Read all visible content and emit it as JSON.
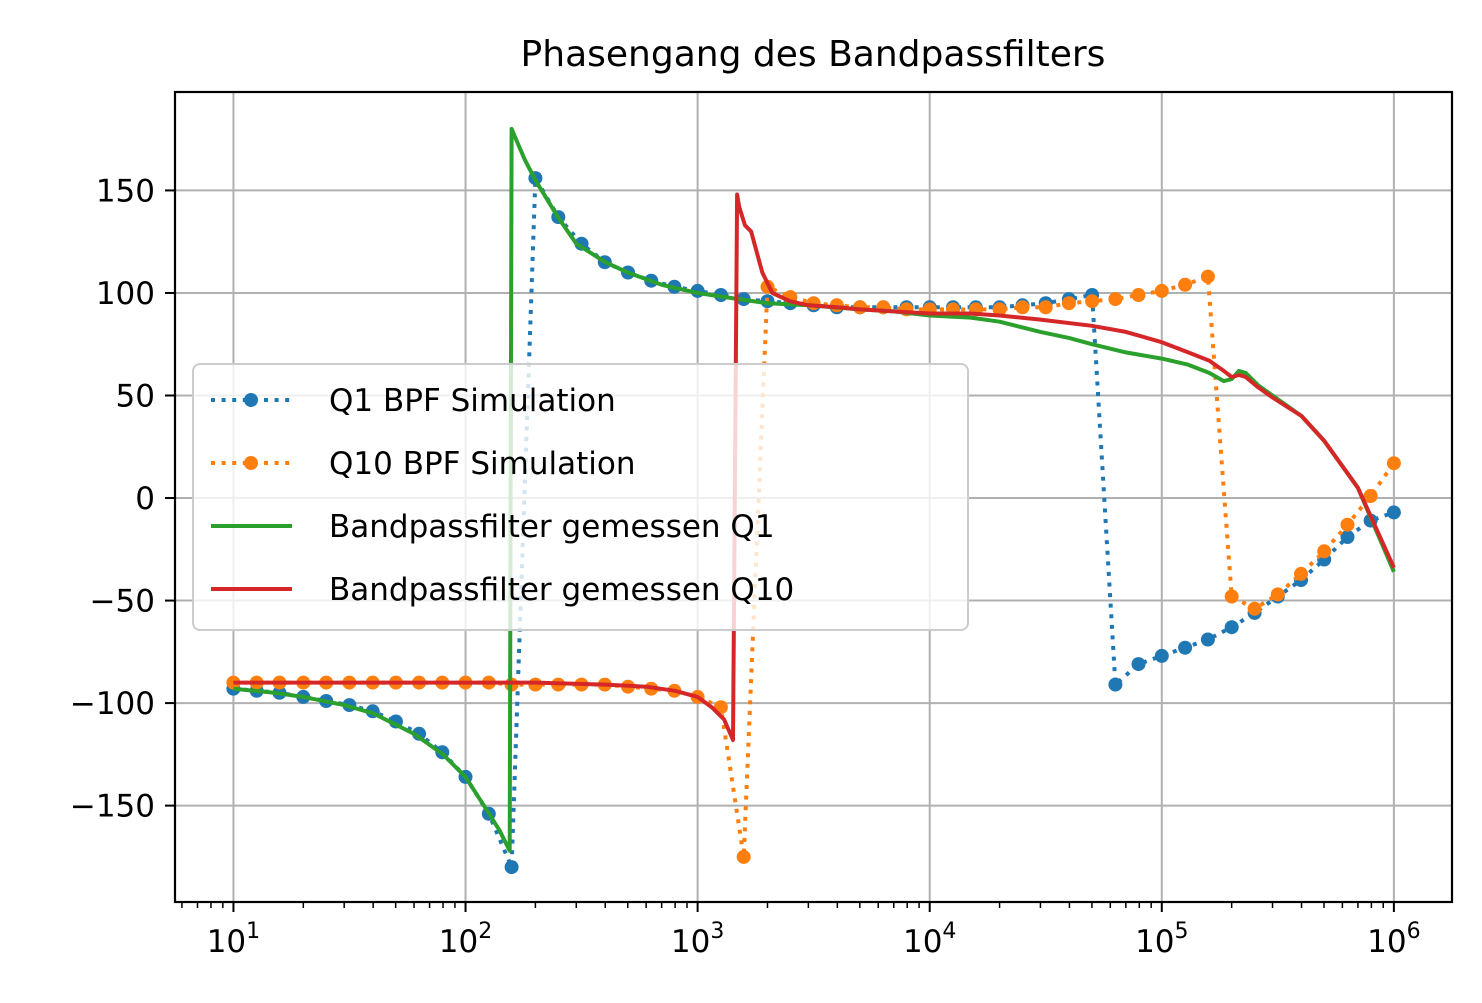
{
  "chart_data": {
    "type": "line",
    "title": "Phasengang des Bandpassfilters",
    "xlabel": "",
    "ylabel": "",
    "xscale": "log",
    "xlim": [
      5.6,
      1780000
    ],
    "ylim": [
      -197,
      198
    ],
    "grid": true,
    "legend_position": "center-left",
    "x_ticks": [
      {
        "value": 10,
        "base": "10",
        "exp": "1"
      },
      {
        "value": 100,
        "base": "10",
        "exp": "2"
      },
      {
        "value": 1000,
        "base": "10",
        "exp": "3"
      },
      {
        "value": 10000,
        "base": "10",
        "exp": "4"
      },
      {
        "value": 100000,
        "base": "10",
        "exp": "5"
      },
      {
        "value": 1000000,
        "base": "10",
        "exp": "6"
      }
    ],
    "y_ticks": [
      {
        "value": 150,
        "label": "150"
      },
      {
        "value": 100,
        "label": "100"
      },
      {
        "value": 50,
        "label": "50"
      },
      {
        "value": 0,
        "label": "0"
      },
      {
        "value": -50,
        "label": "−50"
      },
      {
        "value": -100,
        "label": "−100"
      },
      {
        "value": -150,
        "label": "−150"
      }
    ],
    "series": [
      {
        "name": "Q1 BPF Simulation",
        "color": "#1f77b4",
        "style": "dotted-markers",
        "x": [
          10,
          12.6,
          15.8,
          20,
          25.1,
          31.6,
          39.8,
          50.1,
          63.1,
          79.4,
          100,
          126,
          158,
          200,
          251,
          316,
          398,
          501,
          631,
          794,
          1000,
          1260,
          1580,
          2000,
          2510,
          3160,
          3980,
          5010,
          6310,
          7940,
          10000,
          12600,
          15800,
          20000,
          25100,
          31600,
          39800,
          50100,
          63100,
          79400,
          100000,
          126000,
          158000,
          200000,
          251000,
          316000,
          398000,
          501000,
          631000,
          794000,
          1000000
        ],
        "y": [
          -93,
          -94,
          -95,
          -97,
          -99,
          -101,
          -104,
          -109,
          -115,
          -124,
          -136,
          -154,
          -180,
          156,
          137,
          124,
          115,
          110,
          106,
          103,
          101,
          99,
          97,
          96,
          95,
          94,
          93,
          93,
          93,
          93,
          93,
          93,
          93,
          93,
          94,
          95,
          97,
          99,
          -91,
          -81,
          -77,
          -73,
          -69,
          -63,
          -56,
          -48,
          -40,
          -30,
          -19,
          -11,
          -7
        ]
      },
      {
        "name": "Q10 BPF Simulation",
        "color": "#ff7f0e",
        "style": "dotted-markers",
        "x": [
          10,
          12.6,
          15.8,
          20,
          25.1,
          31.6,
          39.8,
          50.1,
          63.1,
          79.4,
          100,
          126,
          158,
          200,
          251,
          316,
          398,
          501,
          631,
          794,
          1000,
          1260,
          1580,
          2000,
          2510,
          3160,
          3980,
          5010,
          6310,
          7940,
          10000,
          12600,
          15800,
          20000,
          25100,
          31600,
          39800,
          50100,
          63100,
          79400,
          100000,
          126000,
          158000,
          200000,
          251000,
          316000,
          398000,
          501000,
          631000,
          794000,
          1000000
        ],
        "y": [
          -90,
          -90,
          -90,
          -90,
          -90,
          -90,
          -90,
          -90,
          -90,
          -90,
          -90,
          -90,
          -91,
          -91,
          -91,
          -91,
          -91,
          -92,
          -93,
          -94,
          -97,
          -102,
          -175,
          103,
          98,
          95,
          94,
          93,
          93,
          92,
          92,
          92,
          92,
          92,
          93,
          93,
          95,
          96,
          97,
          99,
          101,
          104,
          108,
          -48,
          -54,
          -47,
          -37,
          -26,
          -13,
          1,
          17
        ]
      },
      {
        "name": "Bandpassfilter gemessen Q1",
        "color": "#2ca02c",
        "style": "solid",
        "x": [
          10,
          15,
          20,
          30,
          40,
          60,
          80,
          100,
          120,
          140,
          155,
          158,
          162,
          180,
          200,
          250,
          300,
          400,
          500,
          700,
          1000,
          1500,
          2000,
          3000,
          5000,
          7000,
          10000,
          15000,
          20000,
          30000,
          40000,
          50000,
          70000,
          100000,
          130000,
          160000,
          185000,
          200000,
          215000,
          230000,
          260000,
          300000,
          400000,
          500000,
          700000,
          1000000
        ],
        "y": [
          -93,
          -95,
          -97,
          -101,
          -105,
          -115,
          -125,
          -136,
          -150,
          -162,
          -172,
          180,
          177,
          165,
          155,
          137,
          124,
          115,
          110,
          104,
          100,
          97,
          95,
          94,
          92,
          91,
          89,
          88,
          86,
          81,
          78,
          75,
          71,
          68,
          65,
          61,
          57,
          58,
          62,
          61,
          55,
          50,
          40,
          28,
          5,
          -36
        ]
      },
      {
        "name": "Bandpassfilter gemessen Q10",
        "color": "#d62728",
        "style": "solid",
        "x": [
          10,
          20,
          50,
          100,
          200,
          400,
          600,
          800,
          1000,
          1150,
          1300,
          1420,
          1480,
          1510,
          1600,
          1700,
          1900,
          2100,
          2500,
          3000,
          4000,
          5000,
          7000,
          10000,
          15000,
          20000,
          30000,
          50000,
          70000,
          100000,
          130000,
          160000,
          185000,
          200000,
          215000,
          230000,
          260000,
          300000,
          400000,
          500000,
          700000,
          1000000
        ],
        "y": [
          -90,
          -90,
          -90,
          -90,
          -90,
          -91,
          -92,
          -94,
          -97,
          -102,
          -108,
          -118,
          148,
          142,
          133,
          130,
          110,
          100,
          96,
          94,
          93,
          92,
          91,
          90,
          90,
          89,
          87,
          84,
          81,
          76,
          71,
          67,
          62,
          59,
          60,
          59,
          54,
          49,
          40,
          28,
          5,
          -34
        ]
      }
    ]
  }
}
